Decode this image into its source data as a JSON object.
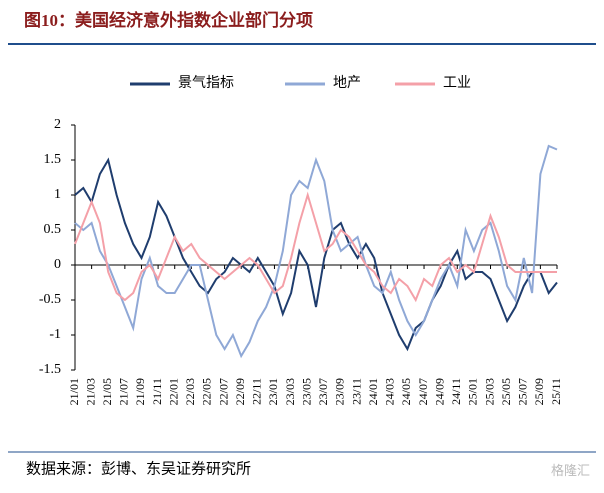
{
  "chart_data": {
    "type": "line",
    "title": "图10：美国经济意外指数企业部门分项",
    "source": "数据来源：彭博、东吴证券研究所",
    "watermark": "格隆汇",
    "categories": [
      "21/01",
      null,
      "21/03",
      null,
      "21/05",
      null,
      "21/07",
      null,
      "21/09",
      null,
      "21/11",
      null,
      "22/01",
      null,
      "22/03",
      null,
      "22/05",
      null,
      "22/07",
      null,
      "22/09",
      null,
      "22/11",
      null,
      "23/01",
      null,
      "23/03",
      null,
      "23/05",
      null,
      "23/07",
      null,
      "23/09",
      null,
      "23/11",
      null,
      "24/01",
      null,
      "24/03",
      null,
      "24/05",
      null,
      "24/07",
      null,
      "24/09",
      null,
      "24/11",
      null,
      "25/01",
      null,
      "25/03",
      null,
      "25/05",
      null,
      "25/07",
      null,
      "25/09",
      null,
      "25/11"
    ],
    "series": [
      {
        "name": "景气指标",
        "color": "#1f3d6e",
        "values": [
          1.0,
          1.1,
          0.9,
          1.3,
          1.5,
          1.0,
          0.6,
          0.3,
          0.1,
          0.4,
          0.9,
          0.7,
          0.4,
          0.1,
          -0.1,
          -0.3,
          -0.4,
          -0.2,
          -0.1,
          0.1,
          0.0,
          -0.1,
          0.1,
          -0.1,
          -0.3,
          -0.7,
          -0.4,
          0.2,
          0.0,
          -0.6,
          0.1,
          0.5,
          0.6,
          0.3,
          0.1,
          0.3,
          0.1,
          -0.4,
          -0.7,
          -1.0,
          -1.2,
          -0.9,
          -0.8,
          -0.5,
          -0.3,
          0.0,
          0.2,
          -0.2,
          -0.1,
          -0.1,
          -0.2,
          -0.5,
          -0.8,
          -0.6,
          -0.3,
          -0.1,
          -0.1,
          -0.4,
          -0.25
        ]
      },
      {
        "name": "地产",
        "color": "#8fa8d6",
        "values": [
          0.6,
          0.5,
          0.6,
          0.2,
          0.0,
          -0.3,
          -0.6,
          -0.9,
          -0.2,
          0.1,
          -0.3,
          -0.4,
          -0.4,
          -0.2,
          0.0,
          0.0,
          -0.5,
          -1.0,
          -1.2,
          -1.0,
          -1.3,
          -1.1,
          -0.8,
          -0.6,
          -0.3,
          0.2,
          1.0,
          1.2,
          1.1,
          1.5,
          1.2,
          0.5,
          0.2,
          0.3,
          0.4,
          0.0,
          -0.3,
          -0.4,
          -0.1,
          -0.5,
          -0.8,
          -1.0,
          -0.8,
          -0.5,
          -0.2,
          0.0,
          -0.3,
          0.5,
          0.2,
          0.5,
          0.6,
          0.2,
          -0.3,
          -0.5,
          0.1,
          -0.4,
          1.3,
          1.7,
          1.65
        ]
      },
      {
        "name": "工业",
        "color": "#f4a0a8",
        "values": [
          0.3,
          0.6,
          0.9,
          0.6,
          -0.1,
          -0.4,
          -0.5,
          -0.4,
          -0.1,
          0.0,
          -0.2,
          0.1,
          0.4,
          0.2,
          0.3,
          0.1,
          0.0,
          -0.1,
          -0.2,
          -0.1,
          0.0,
          0.1,
          0.0,
          -0.2,
          -0.4,
          -0.3,
          0.1,
          0.6,
          1.0,
          0.6,
          0.2,
          0.3,
          0.5,
          0.4,
          0.2,
          0.0,
          -0.1,
          -0.3,
          -0.4,
          -0.2,
          -0.3,
          -0.5,
          -0.2,
          -0.3,
          0.0,
          0.1,
          -0.1,
          0.0,
          -0.1,
          0.3,
          0.7,
          0.4,
          0.0,
          -0.1,
          -0.1,
          -0.1,
          -0.1,
          -0.1,
          -0.1
        ]
      }
    ],
    "ylim": [
      -1.5,
      2
    ],
    "yticks": [
      -1.5,
      -1,
      -0.5,
      0,
      0.5,
      1,
      1.5,
      2
    ]
  }
}
